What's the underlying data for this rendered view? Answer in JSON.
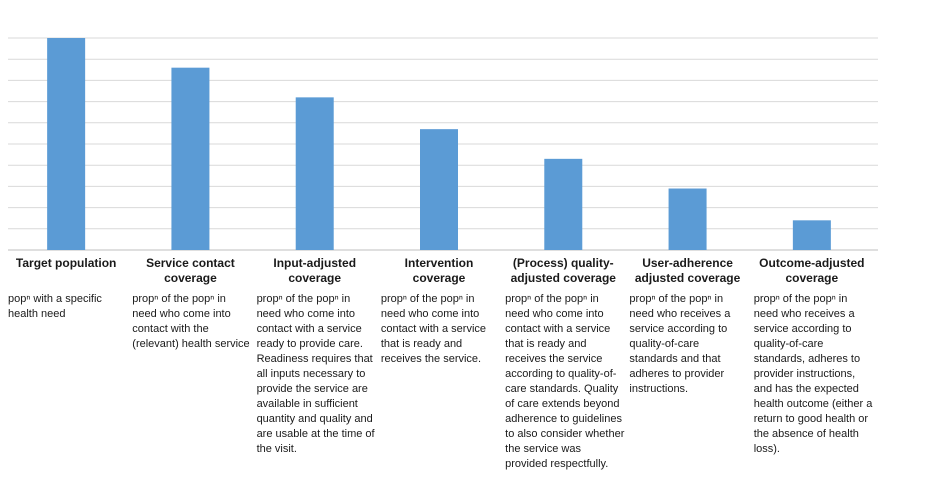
{
  "caption": "",
  "chart_data": {
    "type": "bar",
    "ylabel": "",
    "ylim": [
      0,
      100
    ],
    "grid": true,
    "categories": [
      "Target population",
      "Service contact coverage",
      "Input-adjusted coverage",
      "Intervention coverage",
      "(Process) quality-adjusted coverage",
      "User-adherence adjusted coverage",
      "Outcome-adjusted coverage"
    ],
    "values": [
      100,
      86,
      72,
      57,
      43,
      29,
      14
    ],
    "bar_color": "#5B9BD5",
    "grid_color": "#D9D9D9"
  },
  "descriptions": [
    "popⁿ with a specific health need",
    "propⁿ of the popⁿ in need who come into contact with the (relevant) health service",
    "propⁿ of the popⁿ in need who come into contact with a service ready to provide care. Readiness requires that all inputs necessary to provide the service are available in sufficient quantity and quality and are usable at the time of the visit.",
    "propⁿ of the popⁿ in need who come into contact with a service that is ready and receives the service.",
    "propⁿ of the popⁿ in need who come into contact with a service that is ready and receives the service according to quality-of-care standards. Quality of care extends beyond adherence to guidelines to also consider whether the service was provided respectfully.",
    "propⁿ of the popⁿ in need who receives a service according to quality-of-care standards and that adheres to provider instructions.",
    "propⁿ of the popⁿ in need who receives a service according to quality-of-care standards, adheres to provider instructions, and has the expected health outcome (either a return to good health or the absence of health loss)."
  ]
}
